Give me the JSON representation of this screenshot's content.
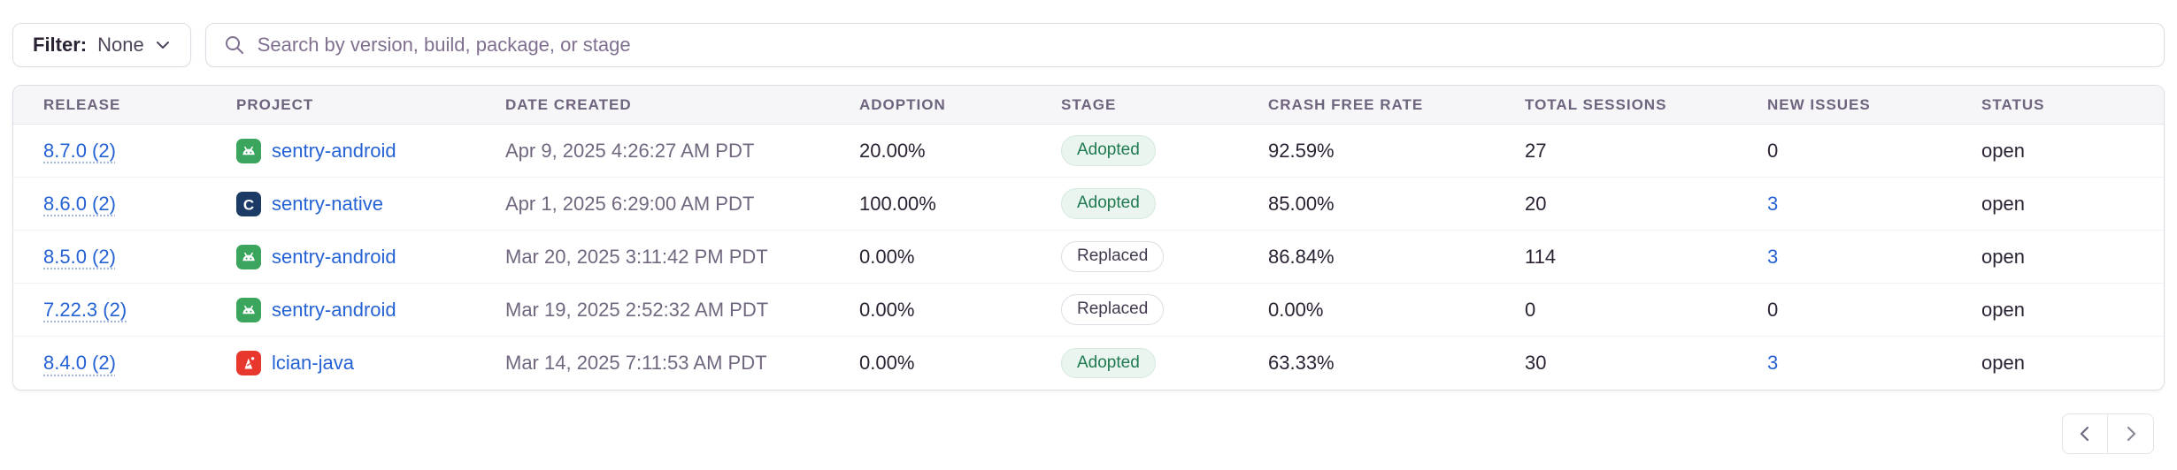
{
  "filter": {
    "label": "Filter:",
    "value": "None"
  },
  "search": {
    "placeholder": "Search by version, build, package, or stage"
  },
  "table": {
    "columns": [
      "RELEASE",
      "PROJECT",
      "DATE CREATED",
      "ADOPTION",
      "STAGE",
      "CRASH FREE RATE",
      "TOTAL SESSIONS",
      "NEW ISSUES",
      "STATUS"
    ],
    "rows": [
      {
        "release": "8.7.0 (2)",
        "project": "sentry-android",
        "project_icon": "android-icon",
        "date_created": "Apr 9, 2025 4:26:27 AM PDT",
        "adoption": "20.00%",
        "stage": "Adopted",
        "stage_type": "adopted",
        "crash_free_rate": "92.59%",
        "total_sessions": "27",
        "new_issues": "0",
        "new_issues_link": false,
        "status": "open"
      },
      {
        "release": "8.6.0 (2)",
        "project": "sentry-native",
        "project_icon": "c-icon",
        "date_created": "Apr 1, 2025 6:29:00 AM PDT",
        "adoption": "100.00%",
        "stage": "Adopted",
        "stage_type": "adopted",
        "crash_free_rate": "85.00%",
        "total_sessions": "20",
        "new_issues": "3",
        "new_issues_link": true,
        "status": "open"
      },
      {
        "release": "8.5.0 (2)",
        "project": "sentry-android",
        "project_icon": "android-icon",
        "date_created": "Mar 20, 2025 3:11:42 PM PDT",
        "adoption": "0.00%",
        "stage": "Replaced",
        "stage_type": "replaced",
        "crash_free_rate": "86.84%",
        "total_sessions": "114",
        "new_issues": "3",
        "new_issues_link": true,
        "status": "open"
      },
      {
        "release": "7.22.3 (2)",
        "project": "sentry-android",
        "project_icon": "android-icon",
        "date_created": "Mar 19, 2025 2:52:32 AM PDT",
        "adoption": "0.00%",
        "stage": "Replaced",
        "stage_type": "replaced",
        "crash_free_rate": "0.00%",
        "total_sessions": "0",
        "new_issues": "0",
        "new_issues_link": false,
        "status": "open"
      },
      {
        "release": "8.4.0 (2)",
        "project": "lcian-java",
        "project_icon": "java-icon",
        "date_created": "Mar 14, 2025 7:11:53 AM PDT",
        "adoption": "0.00%",
        "stage": "Adopted",
        "stage_type": "adopted",
        "crash_free_rate": "63.33%",
        "total_sessions": "30",
        "new_issues": "3",
        "new_issues_link": true,
        "status": "open"
      }
    ]
  },
  "pagination": {
    "prev": "previous-page",
    "next": "next-page"
  },
  "colors": {
    "link_blue": "#2562d4",
    "adopted_green": "#207a50",
    "header_text": "#6f647e",
    "android_green": "#3ba55d",
    "native_navy": "#1b3a66",
    "java_red": "#e8372c"
  }
}
